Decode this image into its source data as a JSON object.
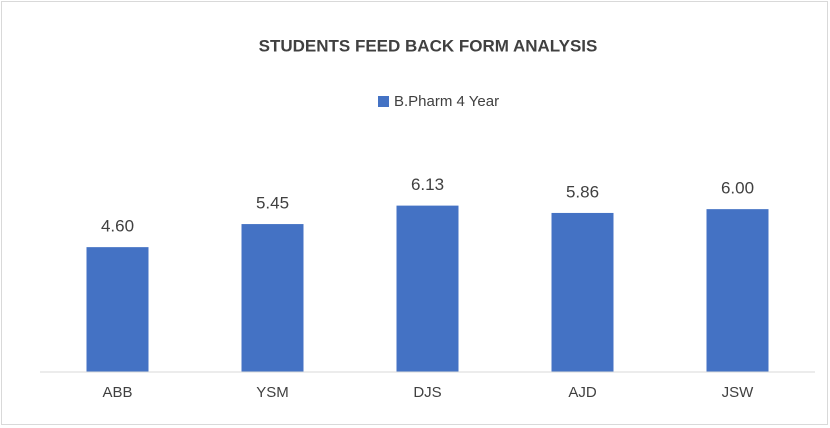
{
  "chart_data": {
    "type": "bar",
    "title": "STUDENTS FEED BACK  FORM ANALYSIS",
    "categories": [
      "ABB",
      "YSM",
      "DJS",
      "AJD",
      "JSW"
    ],
    "series": [
      {
        "name": "B.Pharm 4 Year",
        "color": "#4472c4",
        "values": [
          4.6,
          5.45,
          6.13,
          5.86,
          6.0
        ],
        "value_labels": [
          "4.60",
          "5.45",
          "6.13",
          "5.86",
          "6.00"
        ]
      }
    ],
    "ylim": [
      0,
      7
    ],
    "legend": "top"
  }
}
